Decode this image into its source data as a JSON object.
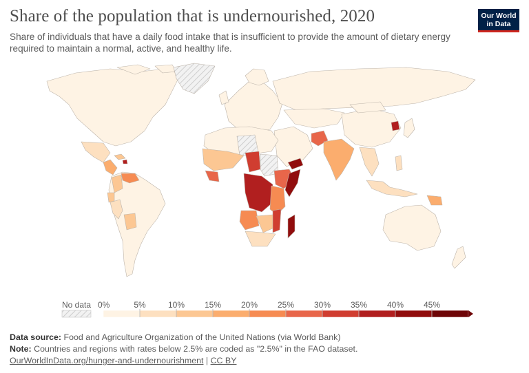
{
  "header": {
    "title": "Share of the population that is undernourished, 2020",
    "subtitle": "Share of individuals that have a daily food intake that is insufficient to provide the amount of dietary energy required to maintain a normal, active, and healthy life."
  },
  "logo": {
    "line1": "Our World",
    "line2": "in Data"
  },
  "legend": {
    "no_data_label": "No data",
    "tick_labels": [
      "0%",
      "5%",
      "10%",
      "15%",
      "20%",
      "25%",
      "30%",
      "35%",
      "40%",
      "45%"
    ],
    "bins": [
      0,
      5,
      10,
      15,
      20,
      25,
      30,
      35,
      40,
      45
    ],
    "colors": [
      "#fef3e4",
      "#fde0c0",
      "#fcc793",
      "#fbad6e",
      "#f68b52",
      "#e8664a",
      "#d03d30",
      "#b11f1f",
      "#910d0d",
      "#6e0507"
    ],
    "no_data_color": "#e0e0e0"
  },
  "footer": {
    "source_label": "Data source:",
    "source_text": "Food and Agriculture Organization of the United Nations (via World Bank)",
    "note_label": "Note:",
    "note_text": "Countries and regions with rates below 2.5% are coded as \"2.5%\" in the FAO dataset.",
    "link_url_text": "OurWorldInData.org/hunger-and-undernourishment",
    "link_sep": " | ",
    "link_license": "CC BY"
  }
}
